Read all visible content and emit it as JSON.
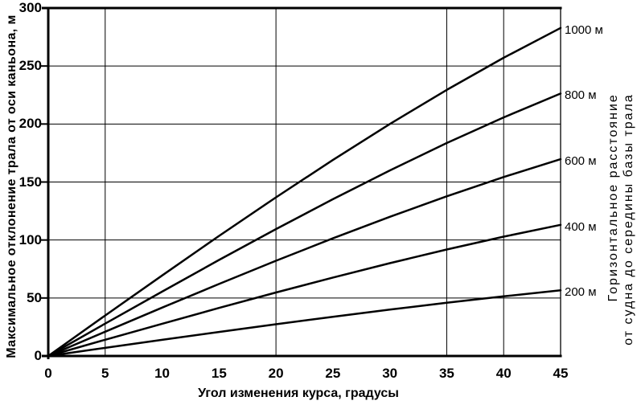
{
  "chart_data": {
    "type": "line",
    "title": "",
    "xlabel": "Угол изменения курса, градусы",
    "ylabel": "Максимальное отклонение трала от оси каньона, м",
    "right_label_line1": "Горизонтальное расстояние",
    "right_label_line2": "от судна до середины базы трала",
    "xlim": [
      0,
      45
    ],
    "ylim": [
      0,
      300
    ],
    "xticks": [
      0,
      5,
      10,
      15,
      20,
      25,
      30,
      35,
      40,
      45
    ],
    "yticks": [
      0,
      50,
      100,
      150,
      200,
      250,
      300
    ],
    "x_gridlines": [
      5,
      20,
      35,
      40
    ],
    "y_gridlines": [
      50,
      100,
      150,
      200,
      250
    ],
    "grid": "partial",
    "legend_position": "labels-at-right-edge",
    "line_color": "#000000",
    "background_color": "#ffffff",
    "x": [
      0,
      5,
      10,
      15,
      20,
      25,
      30,
      35,
      40,
      45
    ],
    "series": [
      {
        "name": "distance-1000",
        "label": "1000 м",
        "values": [
          0,
          34.9,
          69.4,
          103.5,
          136.8,
          169.0,
          200.0,
          229.4,
          257.1,
          282.8
        ]
      },
      {
        "name": "distance-800",
        "label": "800 м",
        "values": [
          0,
          27.9,
          55.5,
          82.8,
          109.4,
          135.2,
          160.0,
          183.6,
          205.7,
          226.3
        ]
      },
      {
        "name": "distance-600",
        "label": "600 м",
        "values": [
          0,
          20.9,
          41.7,
          62.1,
          82.1,
          101.4,
          120.0,
          137.7,
          154.3,
          169.7
        ]
      },
      {
        "name": "distance-400",
        "label": "400 м",
        "values": [
          0,
          14.0,
          27.8,
          41.4,
          54.7,
          67.6,
          80.0,
          91.8,
          102.9,
          113.1
        ]
      },
      {
        "name": "distance-200",
        "label": "200 м",
        "values": [
          0,
          7.0,
          13.9,
          20.7,
          27.4,
          33.8,
          40.0,
          45.9,
          51.4,
          56.6
        ]
      }
    ]
  }
}
